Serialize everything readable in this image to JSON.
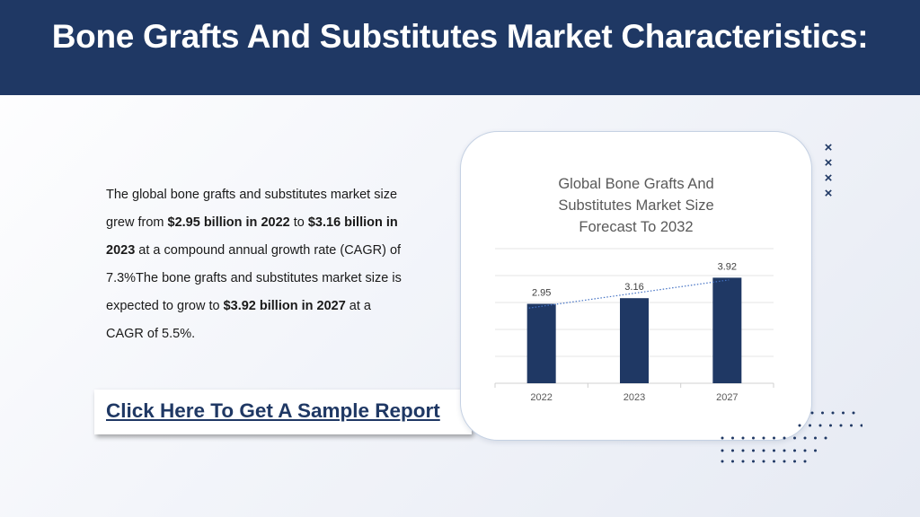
{
  "header": {
    "title": "Bone Grafts And Substitutes Market Characteristics:"
  },
  "description": {
    "t1": "The global bone grafts and substitutes market size grew from ",
    "b1": "$2.95 billion in 2022",
    "t2": " to ",
    "b2": "$3.16 billion in 2023",
    "t3": " at a compound annual growth rate (CAGR) of 7.3%The bone grafts and substitutes market size is expected to grow to ",
    "b3": "$3.92 billion in 2027",
    "t4": " at a CAGR of 5.5%."
  },
  "cta": {
    "label": "Click Here To Get A Sample Report"
  },
  "decor": {
    "x_marks": [
      "×",
      "×",
      "×",
      "×"
    ]
  },
  "colors": {
    "brand": "#1f3864",
    "bar": "#1f3864",
    "trendline": "#4472c4"
  },
  "chart_data": {
    "type": "bar",
    "title_lines": [
      "Global Bone Grafts And",
      "Substitutes Market Size",
      "Forecast To 2032"
    ],
    "categories": [
      "2022",
      "2023",
      "2027"
    ],
    "values": [
      2.95,
      3.16,
      3.92
    ],
    "data_labels": [
      "2.95",
      "3.16",
      "3.92"
    ],
    "ylim": [
      0,
      5
    ],
    "grid": true,
    "trendline": "dotted linear",
    "legend": "none",
    "xlabel": "",
    "ylabel": ""
  }
}
